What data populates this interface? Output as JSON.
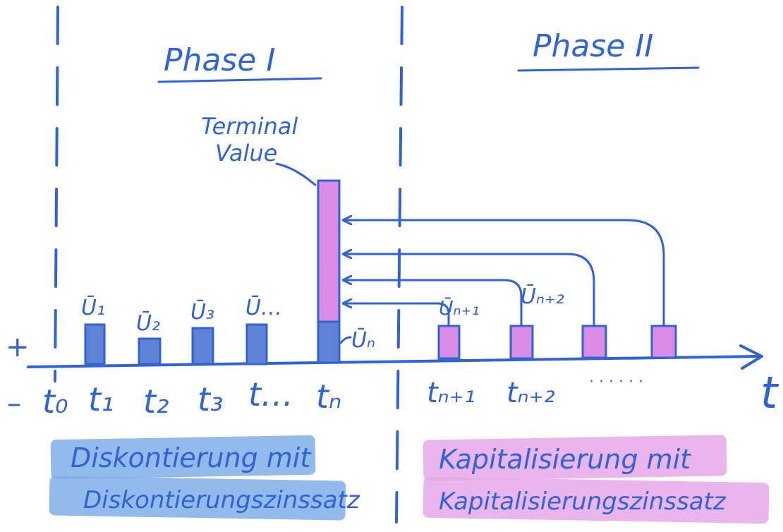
{
  "colors": {
    "ink": "#2f63d6",
    "bar_blue": "#5f82d6",
    "bar_pink": "#d98be6",
    "hl_blue": "#7faee8",
    "hl_pink": "#e6a8ea"
  },
  "signs": {
    "plus": "+",
    "minus": "–"
  },
  "axis": {
    "label": "t"
  },
  "phase1": {
    "title": "Phase I"
  },
  "phase2": {
    "title": "Phase II"
  },
  "terminal": {
    "line1": "Terminal",
    "line2": "Value"
  },
  "phase1_cols": [
    {
      "t": "t₀",
      "u": ""
    },
    {
      "t": "t₁",
      "u": "Ū₁"
    },
    {
      "t": "t₂",
      "u": "Ū₂"
    },
    {
      "t": "t₃",
      "u": "Ū₃"
    },
    {
      "t": "t…",
      "u": "Ū…"
    },
    {
      "t": "tₙ",
      "u": "Ūₙ"
    }
  ],
  "phase2_cols": [
    {
      "t": "tₙ₊₁",
      "u": "Ūₙ₊₁"
    },
    {
      "t": "tₙ₊₂",
      "u": "Ūₙ₊₂"
    },
    {
      "t": "· · · · · ·",
      "u": ""
    }
  ],
  "box_blue": {
    "line1": "Diskontierung mit",
    "line2": "Diskontierungszinssatz"
  },
  "box_pink": {
    "line1": "Kapitalisierung mit",
    "line2": "Kapitalisierungszinssatz"
  }
}
